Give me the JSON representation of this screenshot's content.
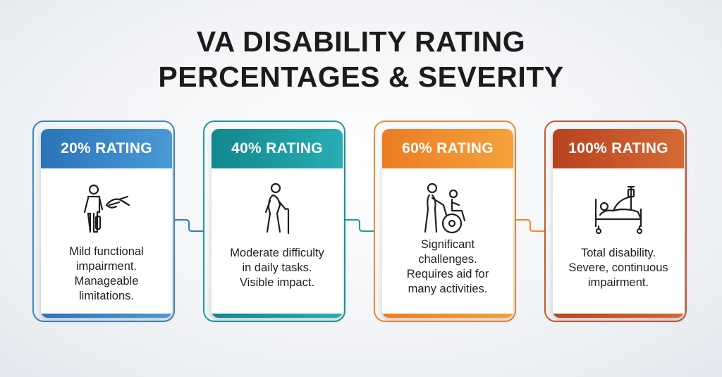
{
  "title": {
    "line1": "VA DISABILITY RATING",
    "line2": "PERCENTAGES & SEVERITY"
  },
  "cards": [
    {
      "label": "20% RATING",
      "lines": [
        "Mild functional",
        "impairment.",
        "Manageable",
        "limitations."
      ],
      "accent": "#2f7ec2",
      "icon": "person-with-cast-and-helping-hand-icon"
    },
    {
      "label": "40% RATING",
      "lines": [
        "Moderate difficulty",
        "in daily tasks.",
        "Visible impact."
      ],
      "accent": "#1c9aa3",
      "icon": "person-with-cane-icon"
    },
    {
      "label": "60% RATING",
      "lines": [
        "Significant",
        "challenges.",
        "Requires aid for",
        "many activities."
      ],
      "accent": "#ee8a2b",
      "icon": "person-pushing-wheelchair-icon"
    },
    {
      "label": "100% RATING",
      "lines": [
        "Total disability.",
        "Severe, continuous",
        "impairment."
      ],
      "accent": "#c9572a",
      "icon": "patient-in-hospital-bed-icon"
    }
  ]
}
